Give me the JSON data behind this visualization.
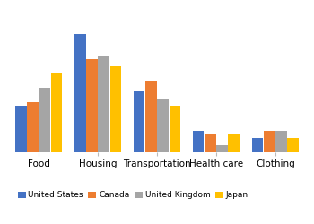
{
  "categories": [
    "Food",
    "Housing",
    "Transportation",
    "Health care",
    "Clothing"
  ],
  "series": {
    "United States": [
      13,
      33,
      17,
      6,
      4
    ],
    "Canada": [
      14,
      26,
      20,
      5,
      6
    ],
    "United Kingdom": [
      18,
      27,
      15,
      2,
      6
    ],
    "Japan": [
      22,
      24,
      13,
      5,
      4
    ]
  },
  "colors": {
    "United States": "#4472C4",
    "Canada": "#ED7D31",
    "United Kingdom": "#A5A5A5",
    "Japan": "#FFC000"
  },
  "legend_order": [
    "United States",
    "Canada",
    "United Kingdom",
    "Japan"
  ],
  "ylim": [
    0,
    40
  ],
  "background_color": "#ffffff",
  "grid_color": "#d9d9d9"
}
